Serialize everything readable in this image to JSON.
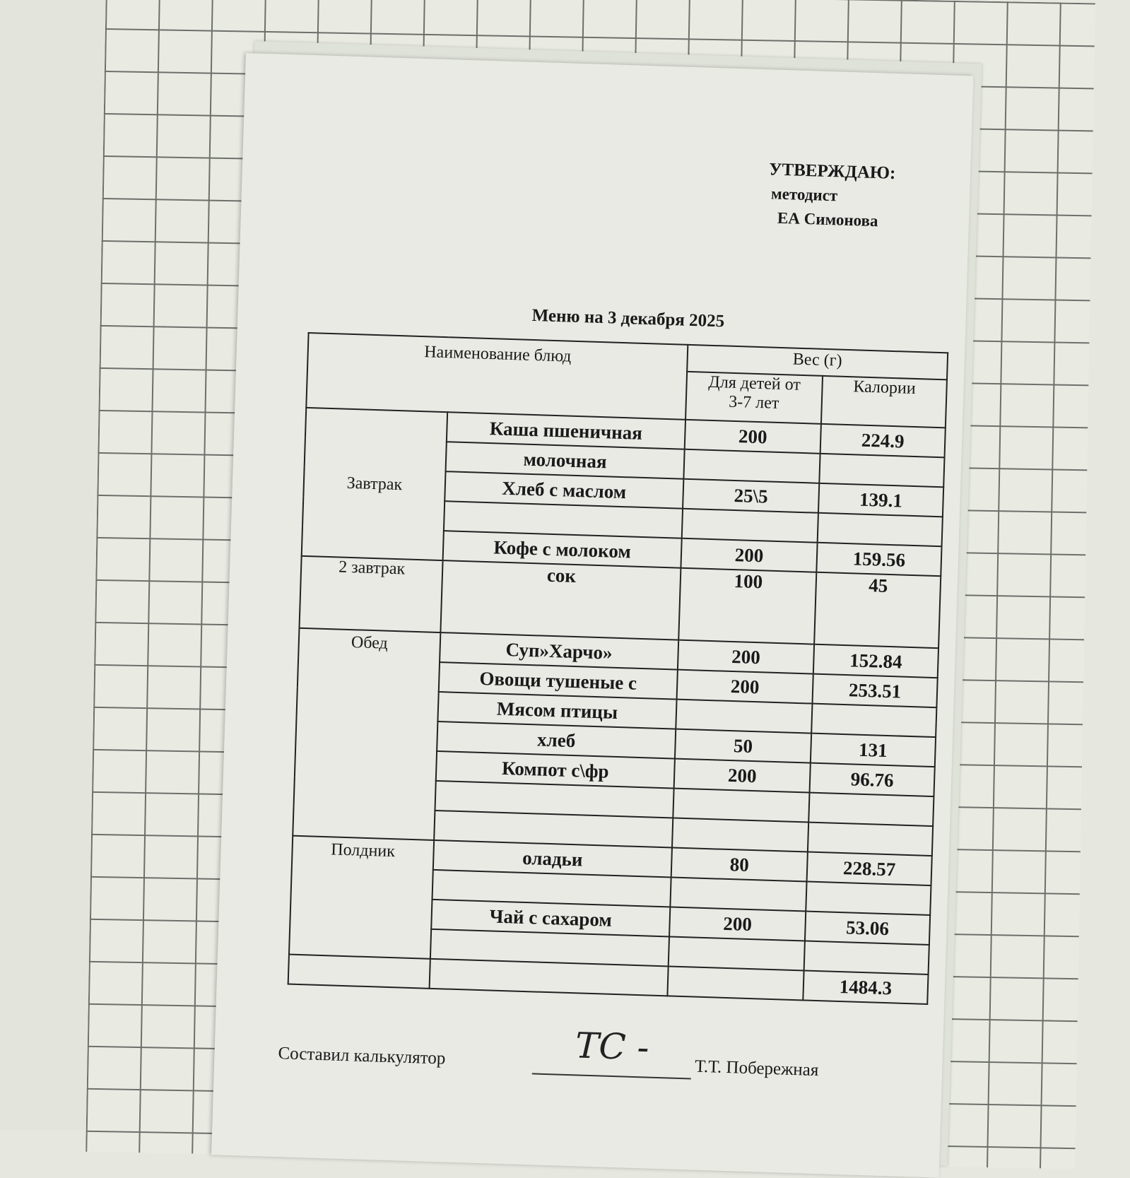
{
  "approval": {
    "heading": "УТВЕРЖДАЮ:",
    "position": "методист",
    "name": "ЕА Симонова"
  },
  "title": "Меню на  3 декабря 2025",
  "table": {
    "headers": {
      "dish": "Наименование блюд",
      "weight": "Вес (г)",
      "kids": "Для детей от 3-7 лет",
      "calories": "Калории"
    },
    "meals": {
      "breakfast": "Завтрак",
      "second_breakfast": "2 завтрак",
      "lunch": "Обед",
      "snack": "Полдник"
    },
    "rows": [
      {
        "dish": "Каша пшеничная",
        "weight": "200",
        "cal": "224.9"
      },
      {
        "dish": "молочная",
        "weight": "",
        "cal": ""
      },
      {
        "dish": "Хлеб с маслом",
        "weight": "25\\5",
        "cal": "139.1"
      },
      {
        "dish": "",
        "weight": "",
        "cal": ""
      },
      {
        "dish": "Кофе с молоком",
        "weight": "200",
        "cal": "159.56"
      },
      {
        "dish": "сок",
        "weight": "100",
        "cal": "45"
      },
      {
        "dish": "Суп»Харчо»",
        "weight": "200",
        "cal": "152.84"
      },
      {
        "dish": "Овощи тушеные с",
        "weight": "200",
        "cal": "253.51"
      },
      {
        "dish": "Мясом птицы",
        "weight": "",
        "cal": ""
      },
      {
        "dish": "хлеб",
        "weight": "50",
        "cal": "131"
      },
      {
        "dish": "Компот с\\фр",
        "weight": "200",
        "cal": "96.76"
      },
      {
        "dish": "",
        "weight": "",
        "cal": ""
      },
      {
        "dish": "",
        "weight": "",
        "cal": ""
      },
      {
        "dish": "оладьи",
        "weight": "80",
        "cal": "228.57"
      },
      {
        "dish": "",
        "weight": "",
        "cal": ""
      },
      {
        "dish": "Чай с сахаром",
        "weight": "200",
        "cal": "53.06"
      },
      {
        "dish": "",
        "weight": "",
        "cal": ""
      }
    ],
    "total": "1484.3"
  },
  "footer": {
    "label": "Составил калькулятор",
    "signature": "ТС -",
    "name": "Т.Т. Побережная"
  }
}
